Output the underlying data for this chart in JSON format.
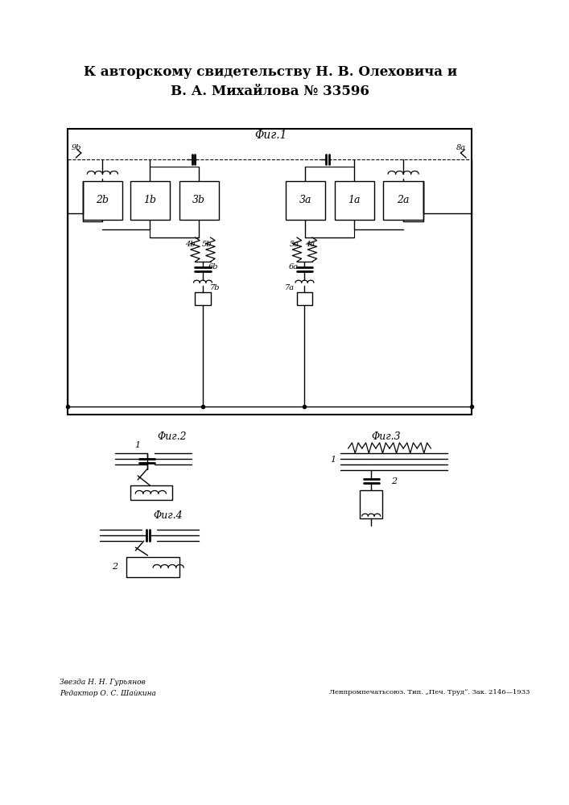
{
  "bg_color": "#ffffff",
  "title_line1": "К авторскому свидетельству Н. В. Олеховича и",
  "title_line2": "В. А. Михайлова № 33596",
  "fig1_label": "Φиг.1",
  "fig2_label": "Φиг.2",
  "fig3_label": "Φиг.3",
  "fig4_label": "Φиг.4",
  "footer_left1": "Звезда Н. Н. Гурьянов",
  "footer_left2": "Редактор О. С. Шайкина",
  "footer_right": "Ленпромпечатьсоюз. Тип. „Печ. Труд“. Зак. 2146—1933"
}
